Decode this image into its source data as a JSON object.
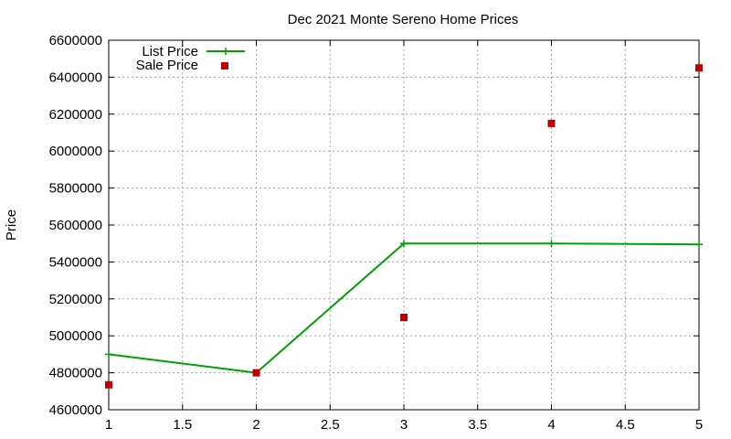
{
  "chart_data": {
    "type": "line",
    "title": "Dec 2021 Monte Sereno Home Prices",
    "xlabel": "",
    "ylabel": "Price",
    "xlim": [
      1,
      5
    ],
    "ylim": [
      4600000,
      6600000
    ],
    "x_ticks": [
      "1",
      "1.5",
      "2",
      "2.5",
      "3",
      "3.5",
      "4",
      "4.5",
      "5"
    ],
    "y_ticks": [
      "4600000",
      "4800000",
      "5000000",
      "5200000",
      "5400000",
      "5600000",
      "5800000",
      "6000000",
      "6200000",
      "6400000",
      "6600000"
    ],
    "grid": true,
    "legend_position": "top-left",
    "series": [
      {
        "name": "List Price",
        "style": "line-with-plus-markers",
        "color": "#00a000",
        "x": [
          1,
          2,
          3,
          4,
          5
        ],
        "values": [
          4900000,
          4800000,
          5500000,
          5500000,
          5495000
        ]
      },
      {
        "name": "Sale Price",
        "style": "square-markers",
        "color": "#c00000",
        "x": [
          1,
          2,
          3,
          4,
          5
        ],
        "values": [
          4735000,
          4800000,
          5100000,
          6150000,
          6450000
        ]
      }
    ]
  }
}
